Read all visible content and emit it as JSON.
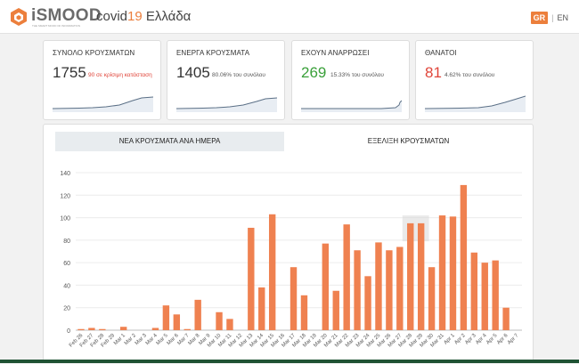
{
  "header": {
    "logo_text": "iSMOOD",
    "logo_tagline": "THE SMART MOOD OF INFORMATION",
    "title_prefix": "covid",
    "title_number": "19",
    "title_suffix": " Ελλάδα",
    "lang_active": "GR",
    "lang_sep": "|",
    "lang_other": "EN"
  },
  "cards": [
    {
      "caption": "ΣΥΝΟΛΟ ΚΡΟΥΣΜΑΤΩΝ",
      "value": "1755",
      "sub": "90 σε κρίσιμη κατάσταση",
      "value_color": "#333333",
      "sub_color": "#e0453a"
    },
    {
      "caption": "ΕΝΕΡΓΑ ΚΡΟΥΣΜΑΤΑ",
      "value": "1405",
      "sub": "80.06% του συνόλου",
      "value_color": "#333333",
      "sub_color": "#555555"
    },
    {
      "caption": "ΕΧΟΥΝ ΑΝΑΡΡΩΣΕΙ",
      "value": "269",
      "sub": "15.33% του συνόλου",
      "value_color": "#3aa03a",
      "sub_color": "#555555"
    },
    {
      "caption": "ΘΑΝΑΤΟΙ",
      "value": "81",
      "sub": "4.62% του συνόλου",
      "value_color": "#e0453a",
      "sub_color": "#555555"
    }
  ],
  "tabs": {
    "daily": "ΝΕΑ ΚΡΟΥΣΜΑΤΑ ΑΝΑ ΗΜΕΡΑ",
    "evolution": "ΕΞΕΛΙΞΗ ΚΡΟΥΣΜΑΤΩΝ"
  },
  "colors": {
    "accent": "#ec7f3c",
    "bar": "#ef8150",
    "hover_band": "#d9d9d9"
  },
  "chart_data": {
    "type": "bar",
    "categories": [
      "Feb 26",
      "Feb 27",
      "Feb 28",
      "Feb 29",
      "Mar 1",
      "Mar 2",
      "Mar 3",
      "Mar 4",
      "Mar 5",
      "Mar 6",
      "Mar 7",
      "Mar 8",
      "Mar 9",
      "Mar 10",
      "Mar 11",
      "Mar 12",
      "Mar 13",
      "Mar 14",
      "Mar 15",
      "Mar 16",
      "Mar 17",
      "Mar 18",
      "Mar 19",
      "Mar 20",
      "Mar 21",
      "Mar 22",
      "Mar 23",
      "Mar 24",
      "Mar 25",
      "Mar 26",
      "Mar 27",
      "Mar 28",
      "Mar 29",
      "Mar 30",
      "Mar 31",
      "Apr 1",
      "Apr 2",
      "Apr 3",
      "Apr 4",
      "Apr 5",
      "Apr 6",
      "Apr 7"
    ],
    "values": [
      1,
      2,
      1,
      0,
      3,
      0,
      0,
      2,
      22,
      14,
      1,
      27,
      0,
      16,
      10,
      0,
      91,
      38,
      103,
      0,
      56,
      31,
      0,
      77,
      35,
      94,
      71,
      48,
      78,
      71,
      74,
      95,
      95,
      56,
      102,
      101,
      129,
      69,
      60,
      62,
      20,
      0
    ],
    "title": "",
    "xlabel": "",
    "ylabel": "",
    "ylim": [
      0,
      140
    ],
    "yticks": [
      0,
      20,
      40,
      60,
      80,
      100,
      120,
      140
    ],
    "grid": true,
    "hover_band_categories": [
      "Mar 28",
      "Mar 29"
    ]
  }
}
